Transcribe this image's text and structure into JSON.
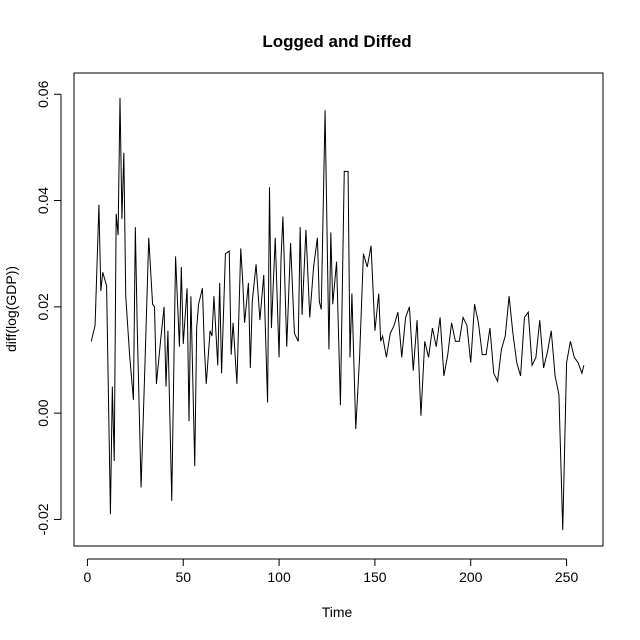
{
  "chart_data": {
    "type": "line",
    "title": "Logged and Diffed",
    "xlabel": "Time",
    "ylabel": "diff(log(GDP))",
    "xlim": [
      -7,
      269
    ],
    "ylim": [
      -0.025,
      0.064
    ],
    "x_ticks": [
      {
        "value": 0,
        "label": "0"
      },
      {
        "value": 50,
        "label": "50"
      },
      {
        "value": 100,
        "label": "100"
      },
      {
        "value": 150,
        "label": "150"
      },
      {
        "value": 200,
        "label": "200"
      },
      {
        "value": 250,
        "label": "250"
      }
    ],
    "y_ticks": [
      {
        "value": -0.02,
        "label": "-0.02"
      },
      {
        "value": 0.0,
        "label": "0.00"
      },
      {
        "value": 0.02,
        "label": "0.02"
      },
      {
        "value": 0.04,
        "label": "0.04"
      },
      {
        "value": 0.06,
        "label": "0.06"
      }
    ],
    "grid": false,
    "line_color": "#000000",
    "series": [
      {
        "x": [
          2,
          4,
          6,
          7,
          8,
          10,
          12,
          13,
          14,
          15,
          16,
          17,
          18,
          19,
          20,
          22,
          24,
          25,
          26,
          28,
          30,
          32,
          34,
          35,
          36,
          38,
          40,
          41,
          42,
          44,
          46,
          48,
          49,
          50,
          52,
          53,
          54,
          56,
          57,
          58,
          60,
          61,
          62,
          64,
          65,
          66,
          68,
          69,
          70,
          72,
          74,
          75,
          76,
          78,
          80,
          81,
          82,
          84,
          85,
          86,
          88,
          90,
          92,
          94,
          95,
          96,
          98,
          100,
          101,
          102,
          104,
          106,
          108,
          110,
          111,
          112,
          114,
          116,
          118,
          120,
          121,
          122,
          124,
          126,
          127,
          128,
          130,
          132,
          134,
          136,
          137,
          138,
          140,
          142,
          144,
          146,
          148,
          150,
          152,
          153,
          154,
          156,
          158,
          160,
          162,
          164,
          166,
          168,
          170,
          172,
          174,
          176,
          178,
          180,
          182,
          184,
          186,
          188,
          190,
          192,
          194,
          196,
          198,
          200,
          202,
          204,
          206,
          208,
          210,
          212,
          214,
          216,
          218,
          220,
          222,
          224,
          226,
          228,
          230,
          232,
          234,
          236,
          238,
          240,
          242,
          244,
          246,
          248,
          250,
          252,
          254,
          256,
          258,
          259
        ],
        "values": [
          0.0135,
          0.0165,
          0.0392,
          0.023,
          0.0265,
          0.024,
          -0.019,
          0.005,
          -0.009,
          0.0375,
          0.0335,
          0.0593,
          0.0365,
          0.049,
          0.022,
          0.011,
          0.0025,
          0.035,
          0.016,
          -0.014,
          0.009,
          0.033,
          0.0205,
          0.02,
          0.0055,
          0.013,
          0.02,
          0.005,
          0.0155,
          -0.0165,
          0.0295,
          0.0125,
          0.0275,
          0.013,
          0.0235,
          -0.0015,
          0.022,
          -0.01,
          0.016,
          0.0205,
          0.0235,
          0.0125,
          0.0055,
          0.0155,
          0.0145,
          0.022,
          0.009,
          0.0245,
          0.0075,
          0.03,
          0.0305,
          0.011,
          0.017,
          0.0055,
          0.031,
          0.025,
          0.017,
          0.0245,
          0.0085,
          0.021,
          0.028,
          0.0175,
          0.026,
          0.002,
          0.0425,
          0.016,
          0.033,
          0.0105,
          0.029,
          0.037,
          0.0125,
          0.032,
          0.015,
          0.0135,
          0.035,
          0.0185,
          0.0345,
          0.018,
          0.0275,
          0.033,
          0.021,
          0.0195,
          0.057,
          0.012,
          0.034,
          0.0205,
          0.0285,
          0.0015,
          0.0455,
          0.0455,
          0.0105,
          0.0225,
          -0.003,
          0.0105,
          0.03,
          0.0275,
          0.0315,
          0.0155,
          0.0225,
          0.0135,
          0.0145,
          0.0105,
          0.015,
          0.0165,
          0.019,
          0.0105,
          0.018,
          0.02,
          0.008,
          0.0175,
          -0.0005,
          0.0135,
          0.0105,
          0.016,
          0.0125,
          0.018,
          0.007,
          0.011,
          0.017,
          0.0135,
          0.0135,
          0.018,
          0.0165,
          0.0095,
          0.0205,
          0.017,
          0.011,
          0.011,
          0.016,
          0.0075,
          0.006,
          0.012,
          0.0145,
          0.022,
          0.015,
          0.0095,
          0.007,
          0.018,
          0.019,
          0.009,
          0.0105,
          0.0175,
          0.0085,
          0.0115,
          0.0155,
          0.007,
          0.0035,
          -0.022,
          0.0095,
          0.0135,
          0.0105,
          0.0095,
          0.0075,
          0.009
        ]
      }
    ]
  }
}
